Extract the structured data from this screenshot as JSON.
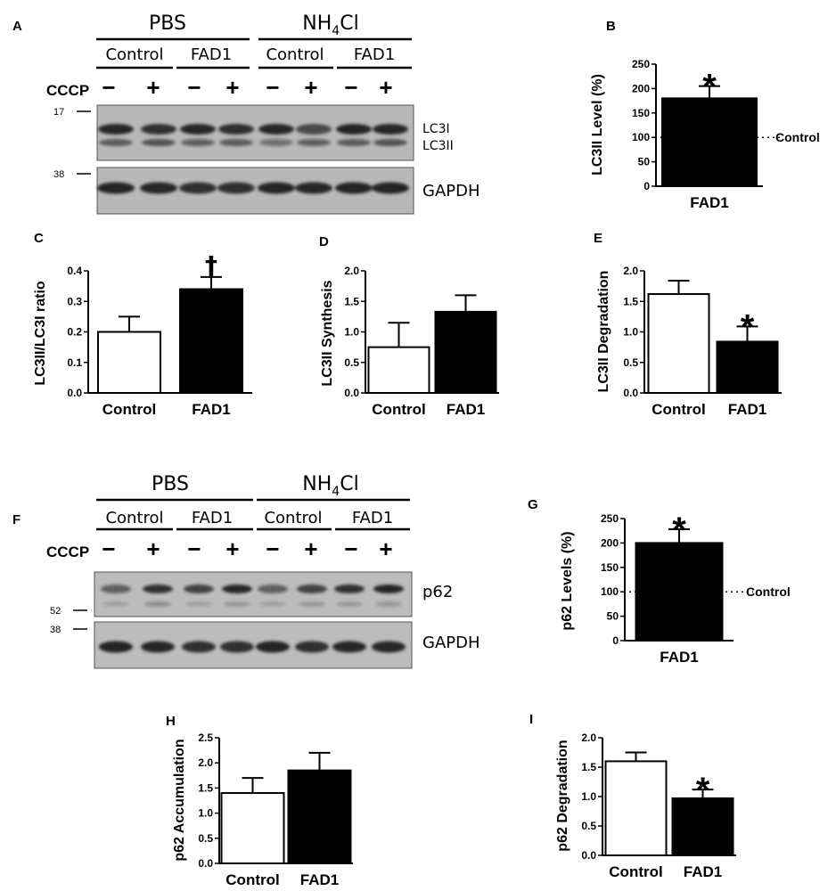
{
  "panel_labels": {
    "A": "A",
    "B": "B",
    "C": "C",
    "D": "D",
    "E": "E",
    "F": "F",
    "G": "G",
    "H": "H",
    "I": "I"
  },
  "blots": [
    {
      "id": "A",
      "treatments": [
        "PBS",
        "NH4Cl"
      ],
      "groups": [
        "Control",
        "FAD1",
        "Control",
        "FAD1"
      ],
      "cccp_label": "CCCP",
      "cccp_signs": [
        "−",
        "+",
        "−",
        "+",
        "−",
        "+",
        "−",
        "+"
      ],
      "top_band_labels": [
        "LC3I",
        "LC3II"
      ],
      "top_marker": "17",
      "bottom_band_label": "GAPDH",
      "bottom_marker": "38"
    },
    {
      "id": "F",
      "treatments": [
        "PBS",
        "NH4Cl"
      ],
      "groups": [
        "Control",
        "FAD1",
        "Control",
        "FAD1"
      ],
      "cccp_label": "CCCP",
      "cccp_signs": [
        "−",
        "+",
        "−",
        "+",
        "−",
        "+",
        "−",
        "+"
      ],
      "top_band_labels": [
        "p62"
      ],
      "top_marker": "52",
      "bottom_band_label": "GAPDH",
      "bottom_marker": "38"
    }
  ],
  "chart_data": [
    {
      "panel": "B",
      "type": "bar",
      "categories": [
        "FAD1"
      ],
      "values": [
        180
      ],
      "errors": [
        25
      ],
      "fills": [
        "#000000"
      ],
      "ylabel": "LC3II Level (%)",
      "ylim": [
        0,
        250
      ],
      "yticks": [
        "0",
        "50",
        "100",
        "150",
        "200",
        "250"
      ],
      "reference": {
        "value": 100,
        "label": "Control"
      },
      "annotations": [
        {
          "category": "FAD1",
          "text": "*"
        }
      ]
    },
    {
      "panel": "C",
      "type": "bar",
      "categories": [
        "Control",
        "FAD1"
      ],
      "values": [
        0.2,
        0.34
      ],
      "errors": [
        0.05,
        0.04
      ],
      "fills": [
        "#ffffff",
        "#000000"
      ],
      "ylabel": "LC3II/LC3I ratio",
      "ylim": [
        0,
        0.4
      ],
      "yticks": [
        "0.0",
        "0.1",
        "0.2",
        "0.3",
        "0.4"
      ],
      "annotations": [
        {
          "category": "FAD1",
          "text": "†"
        }
      ]
    },
    {
      "panel": "D",
      "type": "bar",
      "categories": [
        "Control",
        "FAD1"
      ],
      "values": [
        0.75,
        1.33
      ],
      "errors": [
        0.4,
        0.27
      ],
      "fills": [
        "#ffffff",
        "#000000"
      ],
      "ylabel": "LC3II Synthesis",
      "ylim": [
        0,
        2.0
      ],
      "yticks": [
        "0.0",
        "0.5",
        "1.0",
        "1.5",
        "2.0"
      ],
      "annotations": []
    },
    {
      "panel": "E",
      "type": "bar",
      "categories": [
        "Control",
        "FAD1"
      ],
      "values": [
        1.62,
        0.84
      ],
      "errors": [
        0.22,
        0.25
      ],
      "fills": [
        "#ffffff",
        "#000000"
      ],
      "ylabel": "LC3II Degradation",
      "ylim": [
        0,
        2.0
      ],
      "yticks": [
        "0.0",
        "0.5",
        "1.0",
        "1.5",
        "2.0"
      ],
      "annotations": [
        {
          "category": "FAD1",
          "text": "*"
        }
      ]
    },
    {
      "panel": "G",
      "type": "bar",
      "categories": [
        "FAD1"
      ],
      "values": [
        200
      ],
      "errors": [
        28
      ],
      "fills": [
        "#000000"
      ],
      "ylabel": "p62 Levels (%)",
      "ylim": [
        0,
        250
      ],
      "yticks": [
        "0",
        "50",
        "100",
        "150",
        "200",
        "250"
      ],
      "reference": {
        "value": 100,
        "label": "Control"
      },
      "annotations": [
        {
          "category": "FAD1",
          "text": "*"
        }
      ]
    },
    {
      "panel": "H",
      "type": "bar",
      "categories": [
        "Control",
        "FAD1"
      ],
      "values": [
        1.4,
        1.85
      ],
      "errors": [
        0.3,
        0.35
      ],
      "fills": [
        "#ffffff",
        "#000000"
      ],
      "ylabel": "p62 Accumulation",
      "ylim": [
        0,
        2.5
      ],
      "yticks": [
        "0.0",
        "0.5",
        "1.0",
        "1.5",
        "2.0",
        "2.5"
      ],
      "annotations": []
    },
    {
      "panel": "I",
      "type": "bar",
      "categories": [
        "Control",
        "FAD1"
      ],
      "values": [
        1.6,
        0.97
      ],
      "errors": [
        0.15,
        0.15
      ],
      "fills": [
        "#ffffff",
        "#000000"
      ],
      "ylabel": "p62 Degradation",
      "ylim": [
        0,
        2.0
      ],
      "yticks": [
        "0.0",
        "0.5",
        "1.0",
        "1.5",
        "2.0"
      ],
      "annotations": [
        {
          "category": "FAD1",
          "text": "*"
        }
      ]
    }
  ]
}
